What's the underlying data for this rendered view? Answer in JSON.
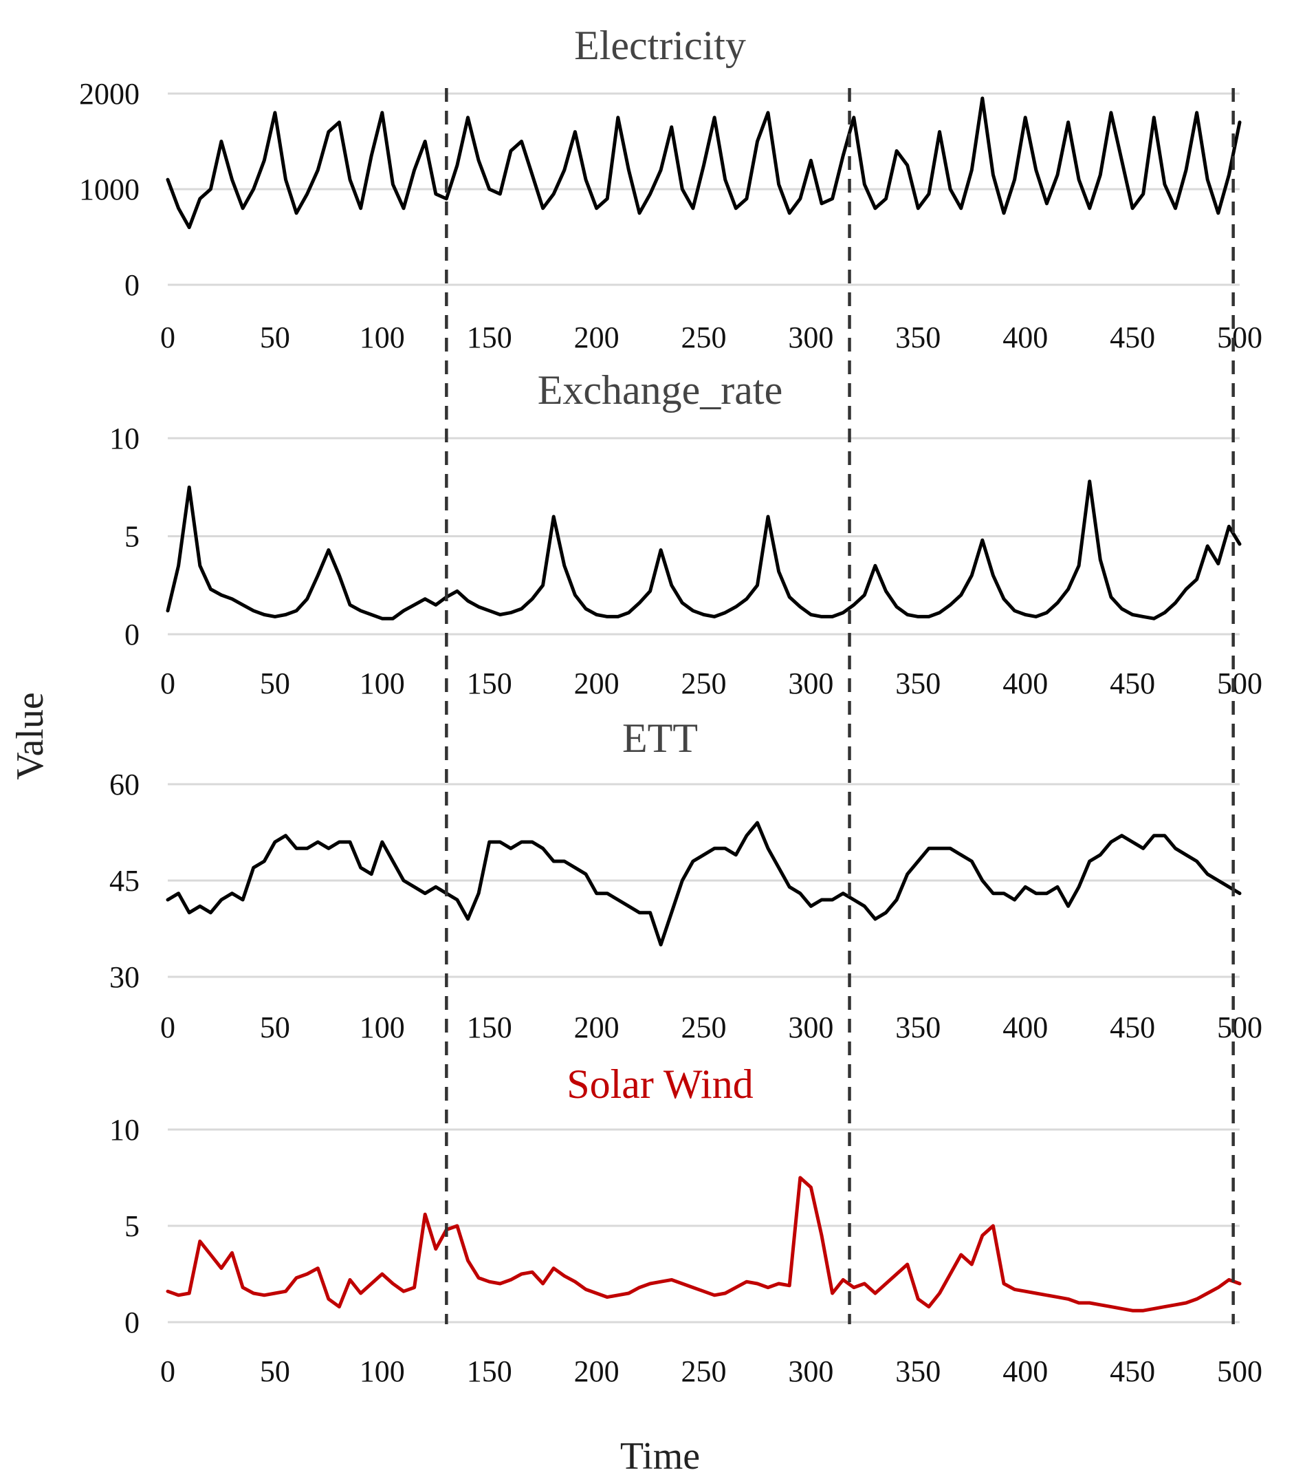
{
  "figure": {
    "xlabel": "Time",
    "ylabel": "Value",
    "dividers": [
      130,
      318,
      497
    ],
    "colors": {
      "grid": "#d9d9d9",
      "divider": "#333333"
    }
  },
  "chart_data": [
    {
      "type": "line",
      "title": "Electricity",
      "title_color": "#444444",
      "line_color": "#000000",
      "xlabel": "Time",
      "ylabel": "Value",
      "xlim": [
        0,
        500
      ],
      "ylim": [
        0,
        2000
      ],
      "xticks": [
        "0",
        "50",
        "100",
        "150",
        "200",
        "250",
        "300",
        "350",
        "400",
        "450",
        "500"
      ],
      "yticks": [
        "0",
        "1000",
        "2000"
      ],
      "x_points": [
        0,
        5,
        10,
        15,
        20,
        25,
        30,
        35,
        40,
        45,
        50,
        55,
        60,
        65,
        70,
        75,
        80,
        85,
        90,
        95,
        100,
        105,
        110,
        115,
        120,
        125,
        130,
        135,
        140,
        145,
        150,
        155,
        160,
        165,
        170,
        175,
        180,
        185,
        190,
        195,
        200,
        205,
        210,
        215,
        220,
        225,
        230,
        235,
        240,
        245,
        250,
        255,
        260,
        265,
        270,
        275,
        280,
        285,
        290,
        295,
        300,
        305,
        310,
        315,
        320,
        325,
        330,
        335,
        340,
        345,
        350,
        355,
        360,
        365,
        370,
        375,
        380,
        385,
        390,
        395,
        400,
        405,
        410,
        415,
        420,
        425,
        430,
        435,
        440,
        445,
        450,
        455,
        460,
        465,
        470,
        475,
        480,
        485,
        490,
        495,
        500
      ],
      "values": [
        1100,
        800,
        600,
        900,
        1000,
        1500,
        1100,
        800,
        1000,
        1300,
        1800,
        1100,
        750,
        950,
        1200,
        1600,
        1700,
        1100,
        800,
        1350,
        1800,
        1050,
        800,
        1200,
        1500,
        950,
        900,
        1250,
        1750,
        1300,
        1000,
        950,
        1400,
        1500,
        1150,
        800,
        950,
        1200,
        1600,
        1100,
        800,
        900,
        1750,
        1200,
        750,
        950,
        1200,
        1650,
        1000,
        800,
        1250,
        1750,
        1100,
        800,
        900,
        1500,
        1800,
        1050,
        750,
        900,
        1300,
        850,
        900,
        1350,
        1750,
        1050,
        800,
        900,
        1400,
        1250,
        800,
        950,
        1600,
        1000,
        800,
        1200,
        1950,
        1150,
        750,
        1100,
        1750,
        1200,
        850,
        1150,
        1700,
        1100,
        800,
        1150,
        1800,
        1300,
        800,
        950,
        1750,
        1050,
        800,
        1200,
        1800,
        1100,
        750,
        1150,
        1700
      ]
    },
    {
      "type": "line",
      "title": "Exchange_rate",
      "title_color": "#444444",
      "line_color": "#000000",
      "xlabel": "Time",
      "ylabel": "Value",
      "xlim": [
        0,
        500
      ],
      "ylim": [
        0,
        10
      ],
      "xticks": [
        "0",
        "50",
        "100",
        "150",
        "200",
        "250",
        "300",
        "350",
        "400",
        "450",
        "500"
      ],
      "yticks": [
        "0",
        "5",
        "10"
      ],
      "x_points": [
        0,
        5,
        10,
        15,
        20,
        25,
        30,
        35,
        40,
        45,
        50,
        55,
        60,
        65,
        70,
        75,
        80,
        85,
        90,
        95,
        100,
        105,
        110,
        115,
        120,
        125,
        130,
        135,
        140,
        145,
        150,
        155,
        160,
        165,
        170,
        175,
        180,
        185,
        190,
        195,
        200,
        205,
        210,
        215,
        220,
        225,
        230,
        235,
        240,
        245,
        250,
        255,
        260,
        265,
        270,
        275,
        280,
        285,
        290,
        295,
        300,
        305,
        310,
        315,
        320,
        325,
        330,
        335,
        340,
        345,
        350,
        355,
        360,
        365,
        370,
        375,
        380,
        385,
        390,
        395,
        400,
        405,
        410,
        415,
        420,
        425,
        430,
        435,
        440,
        445,
        450,
        455,
        460,
        465,
        470,
        475,
        480,
        485,
        490,
        495,
        500
      ],
      "values": [
        1.2,
        3.5,
        7.5,
        3.5,
        2.3,
        2.0,
        1.8,
        1.5,
        1.2,
        1.0,
        0.9,
        1.0,
        1.2,
        1.8,
        3.0,
        4.3,
        3.0,
        1.5,
        1.2,
        1.0,
        0.8,
        0.8,
        1.2,
        1.5,
        1.8,
        1.5,
        1.9,
        2.2,
        1.7,
        1.4,
        1.2,
        1.0,
        1.1,
        1.3,
        1.8,
        2.5,
        6.0,
        3.5,
        2.0,
        1.3,
        1.0,
        0.9,
        0.9,
        1.1,
        1.6,
        2.2,
        4.3,
        2.5,
        1.6,
        1.2,
        1.0,
        0.9,
        1.1,
        1.4,
        1.8,
        2.5,
        6.0,
        3.2,
        1.9,
        1.4,
        1.0,
        0.9,
        0.9,
        1.1,
        1.5,
        2.0,
        3.5,
        2.2,
        1.4,
        1.0,
        0.9,
        0.9,
        1.1,
        1.5,
        2.0,
        3.0,
        4.8,
        3.0,
        1.8,
        1.2,
        1.0,
        0.9,
        1.1,
        1.6,
        2.3,
        3.5,
        7.8,
        3.8,
        1.9,
        1.3,
        1.0,
        0.9,
        0.8,
        1.1,
        1.6,
        2.3,
        2.8,
        4.5,
        3.6,
        5.5,
        4.6
      ]
    },
    {
      "type": "line",
      "title": "ETT",
      "title_color": "#444444",
      "line_color": "#000000",
      "xlabel": "Time",
      "ylabel": "Value",
      "xlim": [
        0,
        500
      ],
      "ylim": [
        30,
        60
      ],
      "xticks": [
        "0",
        "50",
        "100",
        "150",
        "200",
        "250",
        "300",
        "350",
        "400",
        "450",
        "500"
      ],
      "yticks": [
        "30",
        "45",
        "60"
      ],
      "x_points": [
        0,
        5,
        10,
        15,
        20,
        25,
        30,
        35,
        40,
        45,
        50,
        55,
        60,
        65,
        70,
        75,
        80,
        85,
        90,
        95,
        100,
        105,
        110,
        115,
        120,
        125,
        130,
        135,
        140,
        145,
        150,
        155,
        160,
        165,
        170,
        175,
        180,
        185,
        190,
        195,
        200,
        205,
        210,
        215,
        220,
        225,
        230,
        235,
        240,
        245,
        250,
        255,
        260,
        265,
        270,
        275,
        280,
        285,
        290,
        295,
        300,
        305,
        310,
        315,
        320,
        325,
        330,
        335,
        340,
        345,
        350,
        355,
        360,
        365,
        370,
        375,
        380,
        385,
        390,
        395,
        400,
        405,
        410,
        415,
        420,
        425,
        430,
        435,
        440,
        445,
        450,
        455,
        460,
        465,
        470,
        475,
        480,
        485,
        490,
        495,
        500
      ],
      "values": [
        42,
        43,
        40,
        41,
        40,
        42,
        43,
        42,
        47,
        48,
        51,
        52,
        50,
        50,
        51,
        50,
        51,
        51,
        47,
        46,
        51,
        48,
        45,
        44,
        43,
        44,
        43,
        42,
        39,
        43,
        51,
        51,
        50,
        51,
        51,
        50,
        48,
        48,
        47,
        46,
        43,
        43,
        42,
        41,
        40,
        40,
        35,
        40,
        45,
        48,
        49,
        50,
        50,
        49,
        52,
        54,
        50,
        47,
        44,
        43,
        41,
        42,
        42,
        43,
        42,
        41,
        39,
        40,
        42,
        46,
        48,
        50,
        50,
        50,
        49,
        48,
        45,
        43,
        43,
        42,
        44,
        43,
        43,
        44,
        41,
        44,
        48,
        49,
        51,
        52,
        51,
        50,
        52,
        52,
        50,
        49,
        48,
        46,
        45,
        44,
        43
      ]
    },
    {
      "type": "line",
      "title": "Solar Wind",
      "title_color": "#c00000",
      "line_color": "#c00000",
      "xlabel": "Time",
      "ylabel": "Value",
      "xlim": [
        0,
        500
      ],
      "ylim": [
        0,
        10
      ],
      "xticks": [
        "0",
        "50",
        "100",
        "150",
        "200",
        "250",
        "300",
        "350",
        "400",
        "450",
        "500"
      ],
      "yticks": [
        "0",
        "5",
        "10"
      ],
      "x_points": [
        0,
        5,
        10,
        15,
        20,
        25,
        30,
        35,
        40,
        45,
        50,
        55,
        60,
        65,
        70,
        75,
        80,
        85,
        90,
        95,
        100,
        105,
        110,
        115,
        120,
        125,
        130,
        135,
        140,
        145,
        150,
        155,
        160,
        165,
        170,
        175,
        180,
        185,
        190,
        195,
        200,
        205,
        210,
        215,
        220,
        225,
        230,
        235,
        240,
        245,
        250,
        255,
        260,
        265,
        270,
        275,
        280,
        285,
        290,
        295,
        300,
        305,
        310,
        315,
        320,
        325,
        330,
        335,
        340,
        345,
        350,
        355,
        360,
        365,
        370,
        375,
        380,
        385,
        390,
        395,
        400,
        405,
        410,
        415,
        420,
        425,
        430,
        435,
        440,
        445,
        450,
        455,
        460,
        465,
        470,
        475,
        480,
        485,
        490,
        495,
        500
      ],
      "values": [
        1.6,
        1.4,
        1.5,
        4.2,
        3.5,
        2.8,
        3.6,
        1.8,
        1.5,
        1.4,
        1.5,
        1.6,
        2.3,
        2.5,
        2.8,
        1.2,
        0.8,
        2.2,
        1.5,
        2.0,
        2.5,
        2.0,
        1.6,
        1.8,
        5.6,
        3.8,
        4.8,
        5.0,
        3.2,
        2.3,
        2.1,
        2.0,
        2.2,
        2.5,
        2.6,
        2.0,
        2.8,
        2.4,
        2.1,
        1.7,
        1.5,
        1.3,
        1.4,
        1.5,
        1.8,
        2.0,
        2.1,
        2.2,
        2.0,
        1.8,
        1.6,
        1.4,
        1.5,
        1.8,
        2.1,
        2.0,
        1.8,
        2.0,
        1.9,
        7.5,
        7.0,
        4.5,
        1.5,
        2.2,
        1.8,
        2.0,
        1.5,
        2.0,
        2.5,
        3.0,
        1.2,
        0.8,
        1.5,
        2.5,
        3.5,
        3.0,
        4.5,
        5.0,
        2.0,
        1.7,
        1.6,
        1.5,
        1.4,
        1.3,
        1.2,
        1.0,
        1.0,
        0.9,
        0.8,
        0.7,
        0.6,
        0.6,
        0.7,
        0.8,
        0.9,
        1.0,
        1.2,
        1.5,
        1.8,
        2.2,
        2.0
      ]
    }
  ]
}
